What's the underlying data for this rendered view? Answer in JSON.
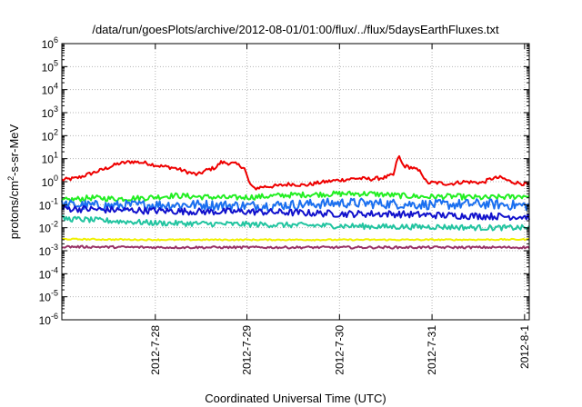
{
  "chart_data": {
    "type": "line",
    "title": "/data/run/goesPlots/archive/2012-08-01/01:00/flux/../flux/5daysEarthFluxes.txt",
    "xlabel": "Coordinated Universal Time (UTC)",
    "ylabel_parts": {
      "pre": "protons/cm",
      "sup": "2",
      "post": "-s-sr-MeV"
    },
    "y_scale": "log",
    "ylim_exp": [
      -6,
      6
    ],
    "y_ticks": [
      {
        "base": "10",
        "exp": "-6"
      },
      {
        "base": "10",
        "exp": "-5"
      },
      {
        "base": "10",
        "exp": "-4"
      },
      {
        "base": "10",
        "exp": "-3"
      },
      {
        "base": "10",
        "exp": "-2"
      },
      {
        "base": "10",
        "exp": "-1"
      },
      {
        "base": "10",
        "exp": "0"
      },
      {
        "base": "10",
        "exp": "1"
      },
      {
        "base": "10",
        "exp": "2"
      },
      {
        "base": "10",
        "exp": "3"
      },
      {
        "base": "10",
        "exp": "4"
      },
      {
        "base": "10",
        "exp": "5"
      },
      {
        "base": "10",
        "exp": "6"
      }
    ],
    "xlim_days": [
      0,
      5
    ],
    "x_ticks": [
      {
        "label": "2012-7-28",
        "day": 1.0
      },
      {
        "label": "2012-7-29",
        "day": 1.98
      },
      {
        "label": "2012-7-30",
        "day": 2.97
      },
      {
        "label": "2012-7-31",
        "day": 3.96
      },
      {
        "label": "2012-8-1",
        "day": 4.95
      }
    ],
    "grid": true,
    "series": [
      {
        "color": "#ee0000",
        "points": [
          [
            0.0,
            1.2
          ],
          [
            0.15,
            1.4
          ],
          [
            0.3,
            2.2
          ],
          [
            0.45,
            3.5
          ],
          [
            0.6,
            6.0
          ],
          [
            0.75,
            7.5
          ],
          [
            0.9,
            6.5
          ],
          [
            1.05,
            4.8
          ],
          [
            1.2,
            4.0
          ],
          [
            1.35,
            2.6
          ],
          [
            1.45,
            2.0
          ],
          [
            1.55,
            3.2
          ],
          [
            1.65,
            4.2
          ],
          [
            1.7,
            7.0
          ],
          [
            1.85,
            6.0
          ],
          [
            1.95,
            4.2
          ],
          [
            2.0,
            1.0
          ],
          [
            2.05,
            0.5
          ],
          [
            2.15,
            0.6
          ],
          [
            2.3,
            0.65
          ],
          [
            2.45,
            0.8
          ],
          [
            2.6,
            0.7
          ],
          [
            2.75,
            0.9
          ],
          [
            2.9,
            1.1
          ],
          [
            3.0,
            1.2
          ],
          [
            3.15,
            1.4
          ],
          [
            3.3,
            1.3
          ],
          [
            3.45,
            1.5
          ],
          [
            3.55,
            2.0
          ],
          [
            3.6,
            14.0
          ],
          [
            3.65,
            5.0
          ],
          [
            3.75,
            4.0
          ],
          [
            3.85,
            2.5
          ],
          [
            3.9,
            0.9
          ],
          [
            4.0,
            0.9
          ],
          [
            4.15,
            0.8
          ],
          [
            4.3,
            1.0
          ],
          [
            4.5,
            0.9
          ],
          [
            4.6,
            1.4
          ],
          [
            4.7,
            1.5
          ],
          [
            4.8,
            1.0
          ],
          [
            4.95,
            0.8
          ],
          [
            5.0,
            0.75
          ]
        ]
      },
      {
        "color": "#22ee22",
        "points": [
          [
            0.0,
            0.15
          ],
          [
            0.3,
            0.2
          ],
          [
            0.6,
            0.18
          ],
          [
            0.9,
            0.2
          ],
          [
            1.2,
            0.25
          ],
          [
            1.5,
            0.22
          ],
          [
            1.8,
            0.2
          ],
          [
            2.1,
            0.22
          ],
          [
            2.4,
            0.26
          ],
          [
            2.7,
            0.28
          ],
          [
            3.0,
            0.3
          ],
          [
            3.3,
            0.3
          ],
          [
            3.6,
            0.25
          ],
          [
            3.9,
            0.22
          ],
          [
            4.2,
            0.23
          ],
          [
            4.5,
            0.2
          ],
          [
            4.8,
            0.22
          ],
          [
            5.0,
            0.25
          ]
        ]
      },
      {
        "color": "#1a6ff0",
        "points": [
          [
            0.0,
            0.1
          ],
          [
            0.5,
            0.09
          ],
          [
            1.0,
            0.1
          ],
          [
            1.5,
            0.1
          ],
          [
            2.0,
            0.09
          ],
          [
            2.5,
            0.1
          ],
          [
            3.0,
            0.12
          ],
          [
            3.5,
            0.11
          ],
          [
            4.0,
            0.1
          ],
          [
            4.5,
            0.11
          ],
          [
            5.0,
            0.09
          ]
        ]
      },
      {
        "color": "#1111cc",
        "points": [
          [
            0.0,
            0.07
          ],
          [
            0.5,
            0.06
          ],
          [
            1.0,
            0.055
          ],
          [
            1.5,
            0.05
          ],
          [
            2.0,
            0.05
          ],
          [
            2.5,
            0.045
          ],
          [
            3.0,
            0.04
          ],
          [
            3.5,
            0.04
          ],
          [
            4.0,
            0.035
          ],
          [
            4.5,
            0.032
          ],
          [
            5.0,
            0.03
          ]
        ]
      },
      {
        "color": "#22c4a0",
        "points": [
          [
            0.0,
            0.025
          ],
          [
            0.5,
            0.02
          ],
          [
            1.0,
            0.016
          ],
          [
            1.5,
            0.015
          ],
          [
            2.0,
            0.014
          ],
          [
            2.5,
            0.013
          ],
          [
            3.0,
            0.012
          ],
          [
            3.5,
            0.011
          ],
          [
            4.0,
            0.011
          ],
          [
            4.5,
            0.01
          ],
          [
            5.0,
            0.01
          ]
        ]
      },
      {
        "color": "#f0f000",
        "points": [
          [
            0.0,
            0.0032
          ],
          [
            1.0,
            0.003
          ],
          [
            2.0,
            0.003
          ],
          [
            3.0,
            0.003
          ],
          [
            4.0,
            0.003
          ],
          [
            5.0,
            0.0031
          ]
        ]
      },
      {
        "color": "#993366",
        "points": [
          [
            0.0,
            0.0015
          ],
          [
            1.0,
            0.0014
          ],
          [
            2.0,
            0.0014
          ],
          [
            3.0,
            0.0014
          ],
          [
            4.0,
            0.0014
          ],
          [
            5.0,
            0.0014
          ]
        ]
      }
    ]
  }
}
